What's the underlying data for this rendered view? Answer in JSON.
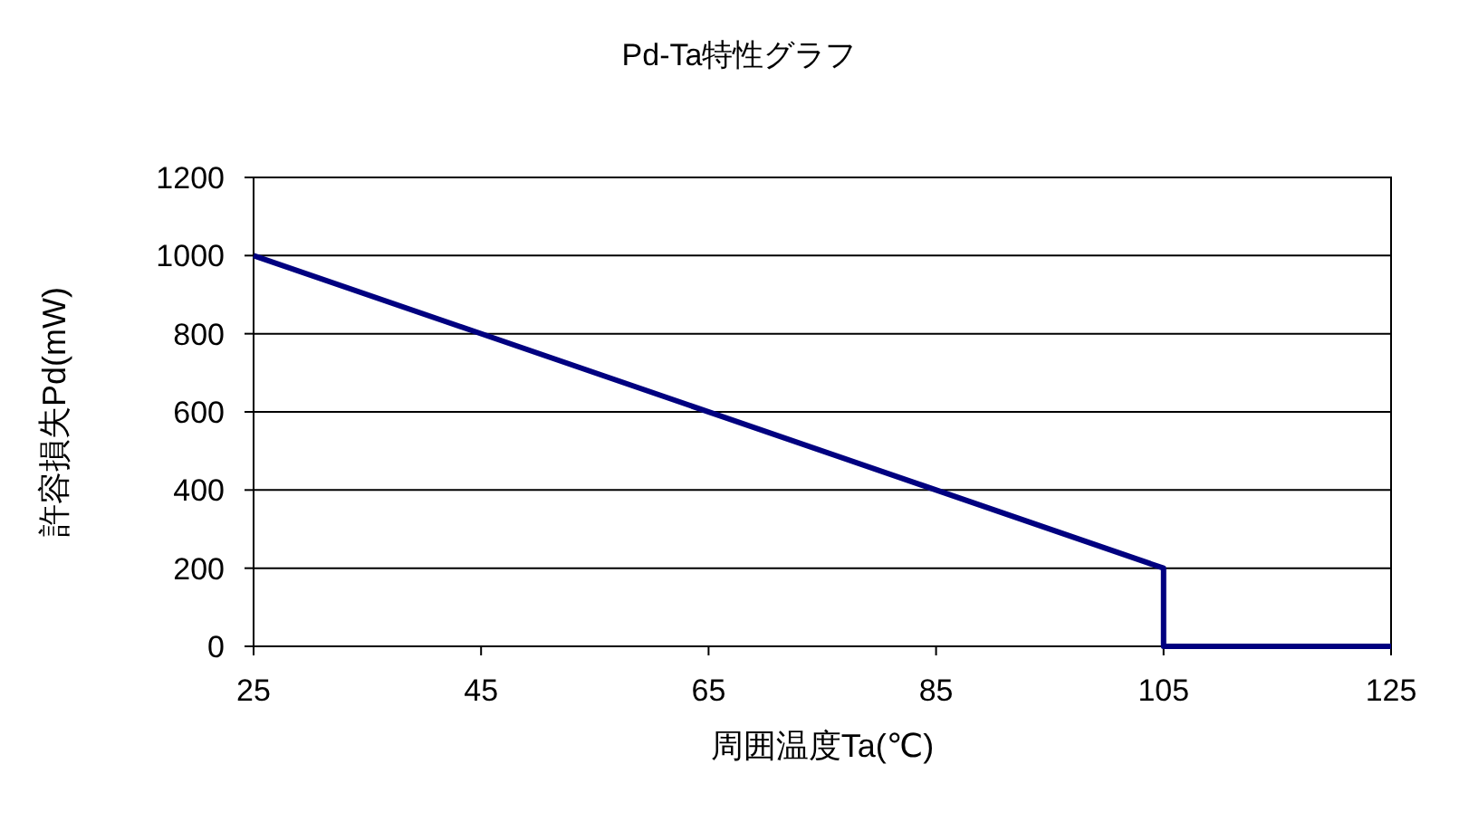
{
  "chart_data": {
    "type": "line",
    "title": "Pd-Ta特性グラフ",
    "xlabel": "周囲温度Ta(℃)",
    "ylabel": "許容損失Pd(mW)",
    "x": [
      25,
      105,
      105,
      125
    ],
    "series": [
      {
        "color": "#000080",
        "values": [
          1000,
          200,
          0,
          0
        ]
      }
    ],
    "xlim": [
      25,
      125
    ],
    "xticks": [
      25,
      45,
      65,
      85,
      105,
      125
    ],
    "ylim": [
      0,
      1200
    ],
    "yticks": [
      0,
      200,
      400,
      600,
      800,
      1000,
      1200
    ],
    "grid": "y"
  }
}
